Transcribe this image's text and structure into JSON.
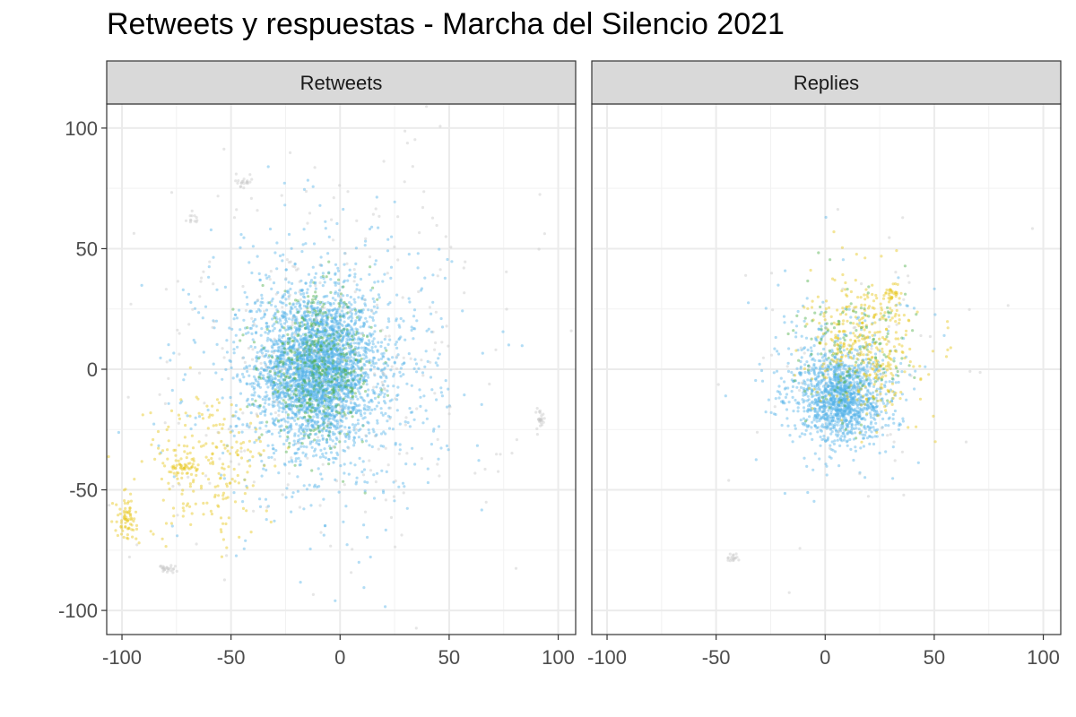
{
  "chart_data": {
    "type": "scatter",
    "title": "Retweets y respuestas - Marcha del Silencio 2021",
    "xlabel": "",
    "ylabel": "",
    "xlim": [
      -107,
      108
    ],
    "ylim": [
      -110,
      110
    ],
    "x_ticks": [
      -100,
      -50,
      0,
      50,
      100
    ],
    "y_ticks": [
      -100,
      -50,
      0,
      50,
      100
    ],
    "grid": true,
    "legend": "none",
    "colors": {
      "blue": "#56b4e9",
      "green": "#4daf4a",
      "yellow": "#e6c619",
      "grey": "#c8c8c8"
    },
    "facets": [
      {
        "label": "Retweets",
        "clusters": [
          {
            "color": "blue",
            "cx": -10,
            "cy": 0,
            "sx": 13,
            "sy": 15,
            "n": 2600
          },
          {
            "color": "green",
            "cx": -10,
            "cy": 0,
            "sx": 13,
            "sy": 15,
            "n": 500
          },
          {
            "color": "blue",
            "cx": -8,
            "cy": 0,
            "sx": 28,
            "sy": 28,
            "n": 900
          },
          {
            "color": "yellow",
            "cx": -60,
            "cy": -40,
            "sx": 15,
            "sy": 15,
            "n": 220
          },
          {
            "color": "yellow",
            "cx": -98,
            "cy": -62,
            "sx": 2.5,
            "sy": 4,
            "n": 70
          },
          {
            "color": "yellow",
            "cx": -72,
            "cy": -40,
            "sx": 3,
            "sy": 2,
            "n": 40
          },
          {
            "color": "grey",
            "cx": -5,
            "cy": 5,
            "sx": 45,
            "sy": 45,
            "n": 300
          },
          {
            "color": "grey",
            "cx": 92,
            "cy": -20,
            "sx": 1,
            "sy": 2,
            "n": 25
          },
          {
            "color": "grey",
            "cx": -79,
            "cy": -83,
            "sx": 2,
            "sy": 1,
            "n": 25
          },
          {
            "color": "grey",
            "cx": -44,
            "cy": 78,
            "sx": 2,
            "sy": 1,
            "n": 20
          },
          {
            "color": "grey",
            "cx": -69,
            "cy": 62,
            "sx": 1.5,
            "sy": 1.5,
            "n": 12
          }
        ]
      },
      {
        "label": "Replies",
        "clusters": [
          {
            "color": "blue",
            "cx": 7,
            "cy": -12,
            "sx": 9,
            "sy": 9,
            "n": 1100
          },
          {
            "color": "blue",
            "cx": 8,
            "cy": -5,
            "sx": 18,
            "sy": 18,
            "n": 350
          },
          {
            "color": "yellow",
            "cx": 18,
            "cy": 10,
            "sx": 12,
            "sy": 14,
            "n": 380
          },
          {
            "color": "green",
            "cx": 14,
            "cy": 4,
            "sx": 14,
            "sy": 14,
            "n": 140
          },
          {
            "color": "yellow",
            "cx": 30,
            "cy": 31,
            "sx": 2,
            "sy": 2,
            "n": 30
          },
          {
            "color": "grey",
            "cx": -42,
            "cy": -78,
            "sx": 1.5,
            "sy": 1,
            "n": 18
          },
          {
            "color": "grey",
            "cx": 10,
            "cy": 0,
            "sx": 30,
            "sy": 30,
            "n": 60
          }
        ]
      }
    ]
  }
}
